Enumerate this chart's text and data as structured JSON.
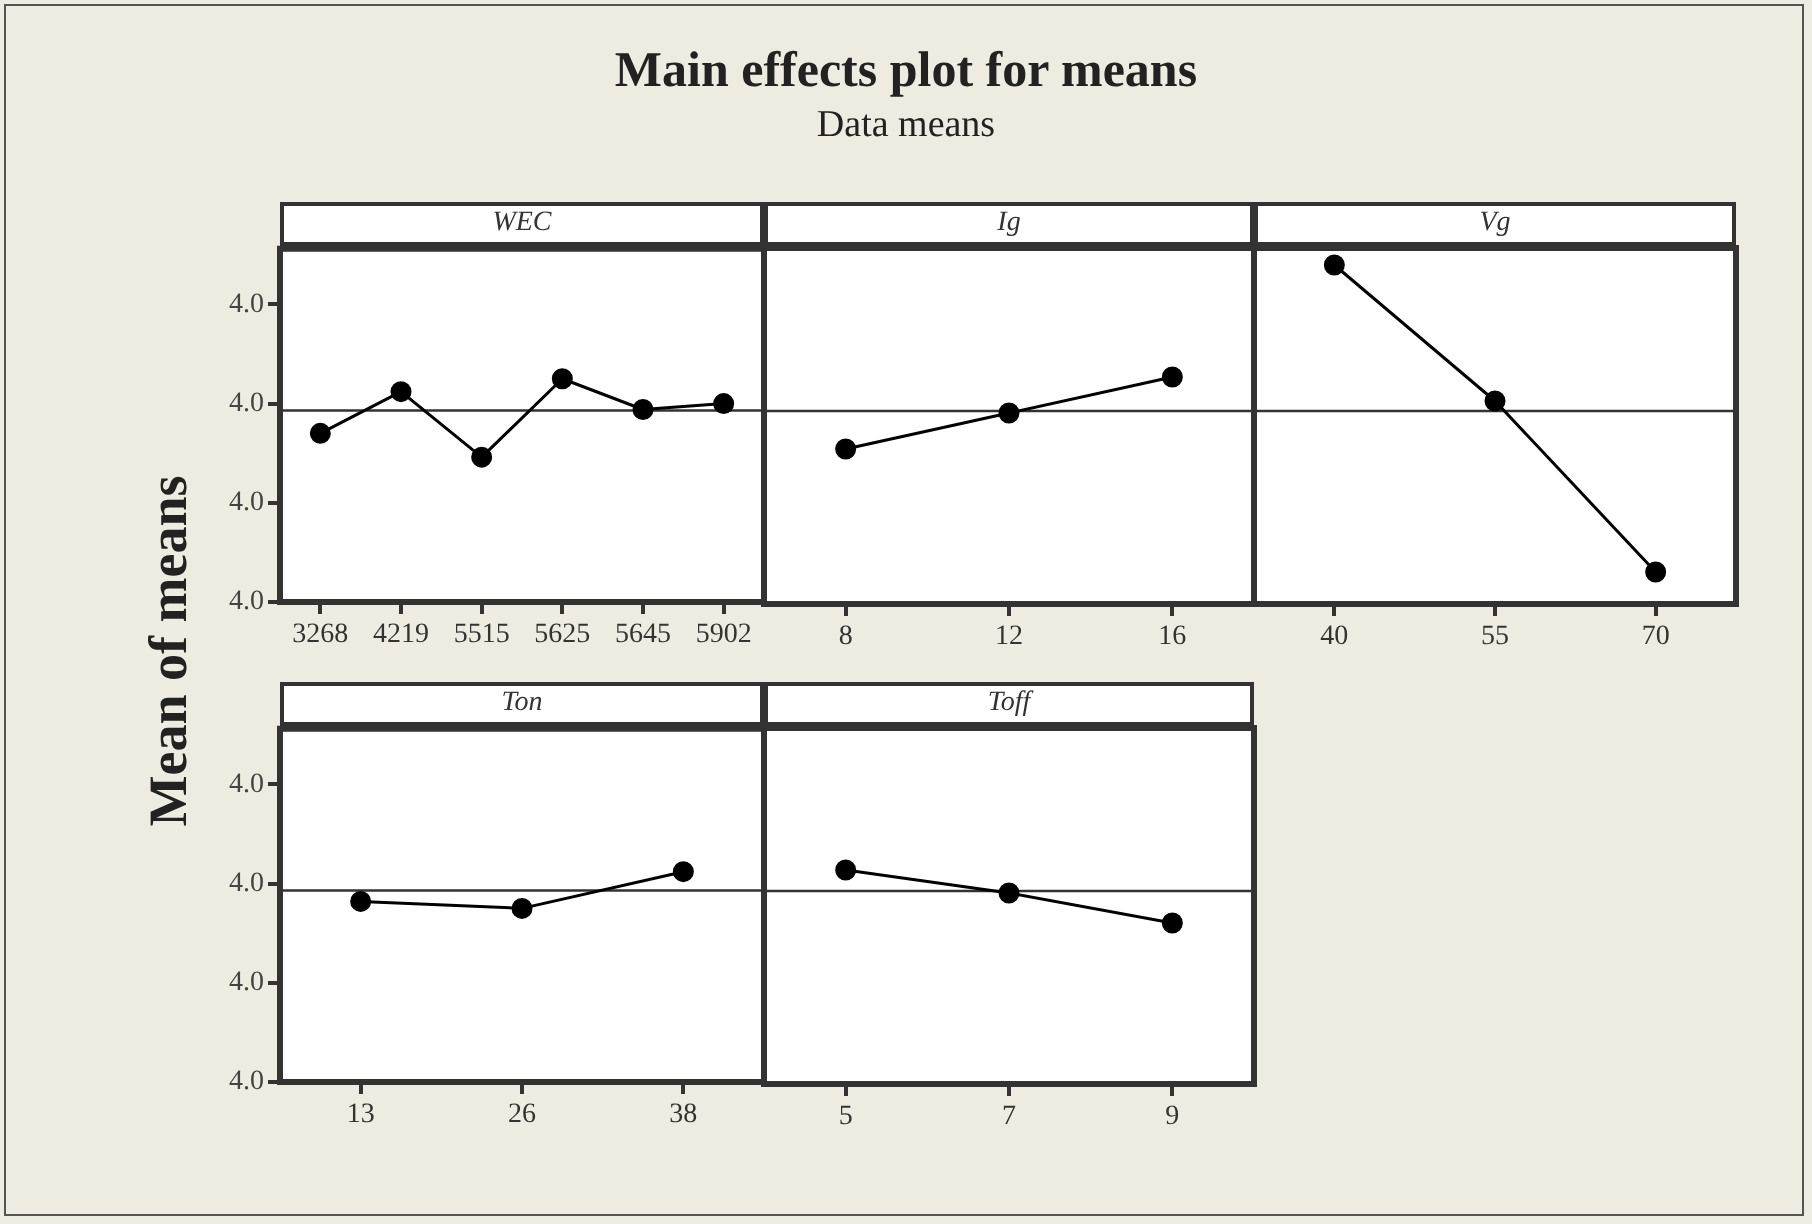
{
  "chart_data": [
    {
      "type": "line",
      "title": "Main effects plot for means",
      "ylabel": "Mean of means",
      "xlabel": "WEC",
      "categories": [
        "3268",
        "4219",
        "5515",
        "5625",
        "5645",
        "5902"
      ],
      "values": [
        3.987,
        3.9912,
        3.9846,
        3.9925,
        3.9894,
        3.99
      ],
      "color": "#000000",
      "marker": "circle",
      "line_style": "solid",
      "ylim": [
        3.97,
        4.0056
      ],
      "yticks": [
        {
          "value": 3.97,
          "label": "4.0"
        },
        {
          "value": 3.98,
          "label": "4.0"
        },
        {
          "value": 3.99,
          "label": "4.0"
        },
        {
          "value": 4.0,
          "label": "4.0"
        }
      ],
      "ref_lines": [
        {
          "axis": "y",
          "value": 3.9893
        }
      ]
    },
    {
      "type": "line",
      "subtitle": "Data means",
      "xlabel": "Ig",
      "categories": [
        "8",
        "12",
        "16"
      ],
      "values": [
        3.9855,
        3.9891,
        3.9927
      ],
      "color": "#000000",
      "marker": "circle",
      "line_style": "solid",
      "ylim": [
        3.97,
        4.0056
      ],
      "tick_labels": "x",
      "ref_lines": [
        {
          "axis": "y",
          "value": 3.9893
        }
      ]
    },
    {
      "type": "line",
      "xlabel": "Vg",
      "categories": [
        "40",
        "55",
        "70"
      ],
      "values": [
        4.0039,
        3.9903,
        3.9732
      ],
      "color": "#000000",
      "marker": "circle",
      "line_style": "solid",
      "ylim": [
        3.97,
        4.0056
      ],
      "tick_labels": "x",
      "ref_lines": [
        {
          "axis": "y",
          "value": 3.9893
        }
      ]
    },
    {
      "type": "line",
      "xlabel": "Ton",
      "categories": [
        "13",
        "26",
        "38"
      ],
      "values": [
        3.9882,
        3.9875,
        3.9912
      ],
      "color": "#000000",
      "marker": "circle",
      "line_style": "solid",
      "ylim": [
        3.97,
        4.0056
      ],
      "yticks": [
        {
          "value": 3.97,
          "label": "4.0"
        },
        {
          "value": 3.98,
          "label": "4.0"
        },
        {
          "value": 3.99,
          "label": "4.0"
        },
        {
          "value": 4.0,
          "label": "4.0"
        }
      ],
      "ref_lines": [
        {
          "axis": "y",
          "value": 3.9893
        }
      ]
    },
    {
      "type": "line",
      "xlabel": "Toff",
      "categories": [
        "5",
        "7",
        "9"
      ],
      "values": [
        3.9914,
        3.9891,
        3.9861
      ],
      "color": "#000000",
      "marker": "circle",
      "line_style": "solid",
      "ylim": [
        3.97,
        4.0056
      ],
      "tick_labels": "x",
      "ref_lines": [
        {
          "axis": "y",
          "value": 3.9893
        }
      ]
    }
  ]
}
